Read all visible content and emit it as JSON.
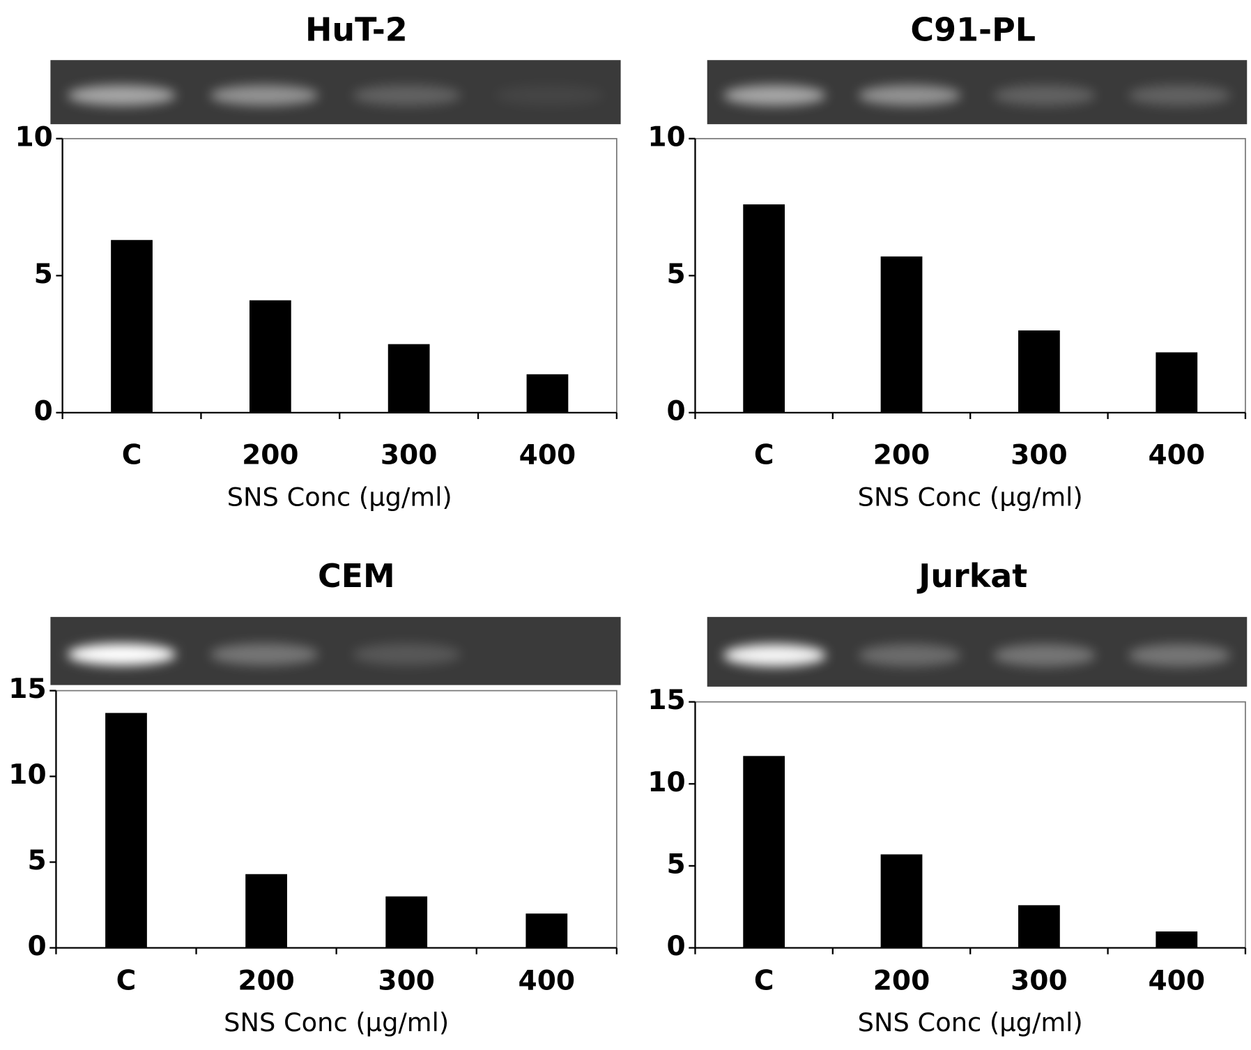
{
  "chart_data": [
    {
      "type": "bar",
      "title": "HuT-2",
      "categories": [
        "C",
        "200",
        "300",
        "400"
      ],
      "values": [
        6.3,
        4.1,
        2.5,
        1.4
      ],
      "color": "#000000",
      "ylim": [
        0,
        10
      ],
      "yticks": [
        0,
        5,
        10
      ],
      "x_label": "SNS Conc (µg/ml)"
    },
    {
      "type": "bar",
      "title": "C91-PL",
      "categories": [
        "C",
        "200",
        "300",
        "400"
      ],
      "values": [
        7.6,
        5.7,
        3.0,
        2.2
      ],
      "color": "#000000",
      "ylim": [
        0,
        10
      ],
      "yticks": [
        0,
        5,
        10
      ],
      "x_label": "SNS Conc (µg/ml)"
    },
    {
      "type": "bar",
      "title": "CEM",
      "categories": [
        "C",
        "200",
        "300",
        "400"
      ],
      "values": [
        13.7,
        4.3,
        3.0,
        2.0
      ],
      "color": "#000000",
      "ylim": [
        0,
        15
      ],
      "yticks": [
        0,
        5,
        10,
        15
      ],
      "x_label": "SNS Conc (µg/ml)"
    },
    {
      "type": "bar",
      "title": "Jurkat",
      "categories": [
        "C",
        "200",
        "300",
        "400"
      ],
      "values": [
        11.7,
        5.7,
        2.6,
        1.0
      ],
      "color": "#000000",
      "ylim": [
        0,
        15
      ],
      "yticks": [
        0,
        5,
        10,
        15
      ],
      "x_label": "SNS Conc (µg/ml)"
    }
  ]
}
